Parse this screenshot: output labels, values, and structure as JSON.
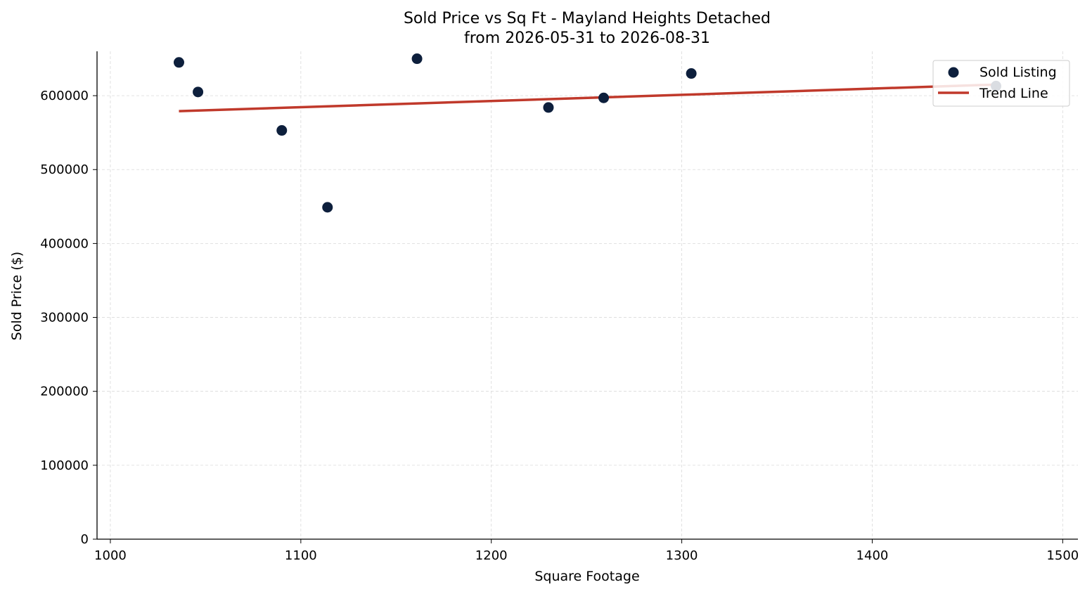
{
  "chart_data": {
    "type": "scatter",
    "title": "Sold Price vs Sq Ft - Mayland Heights Detached",
    "subtitle": "from 2026-05-31 to 2026-08-31",
    "xlabel": "Square Footage",
    "ylabel": "Sold Price ($)",
    "xlim": [
      993,
      1508
    ],
    "ylim": [
      0,
      660000
    ],
    "xticks": [
      1000,
      1100,
      1200,
      1300,
      1400,
      1500
    ],
    "yticks": [
      0,
      100000,
      200000,
      300000,
      400000,
      500000,
      600000
    ],
    "grid": true,
    "legend_position": "top-right",
    "series": [
      {
        "name": "Sold Listing",
        "kind": "scatter",
        "color": "#0d1f3c",
        "points": [
          {
            "x": 1036,
            "y": 645000
          },
          {
            "x": 1046,
            "y": 605000
          },
          {
            "x": 1090,
            "y": 553000
          },
          {
            "x": 1114,
            "y": 449000
          },
          {
            "x": 1161,
            "y": 650000
          },
          {
            "x": 1230,
            "y": 584000
          },
          {
            "x": 1259,
            "y": 597000
          },
          {
            "x": 1305,
            "y": 630000
          },
          {
            "x": 1465,
            "y": 613000
          }
        ]
      },
      {
        "name": "Trend Line",
        "kind": "line",
        "color": "#c0392b",
        "points": [
          {
            "x": 1036,
            "y": 579000
          },
          {
            "x": 1465,
            "y": 615000
          }
        ]
      }
    ]
  }
}
